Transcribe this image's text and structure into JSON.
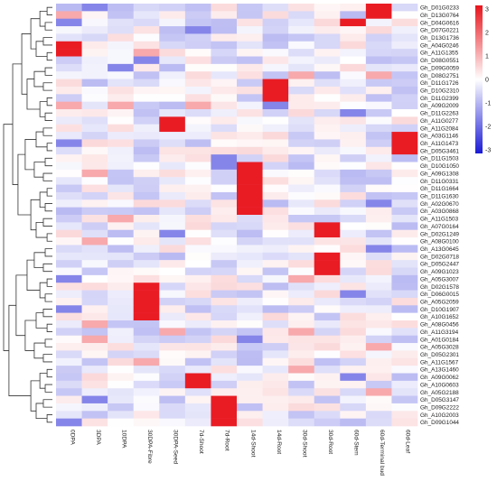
{
  "chart_data": {
    "type": "heatmap",
    "columns": [
      "0DPA",
      "3DPA",
      "10DPA",
      "30DPA-Fibre",
      "30DPA-Seed",
      "7d-Shoot",
      "7d-Root",
      "14d-Shoot",
      "14d-Root",
      "30d-Shoot",
      "30d-Root",
      "60d-Stem",
      "60d-Terminal bud",
      "60d-Leaf"
    ],
    "rows": [
      "Gh_D01G0233",
      "Gh_D13G0764",
      "Gh_D04G0616",
      "Gh_D07G0221",
      "Gh_D13G1736",
      "Gh_A04G0246",
      "Gh_A11G1355",
      "Gh_D08G0551",
      "Gh_D09G0059",
      "Gh_D08G2751",
      "Gh_D11G1726",
      "Gh_D10G2310",
      "Gh_D11G2399",
      "Gh_A09G2009",
      "Gh_D11G2263",
      "Gh_A11G0277",
      "Gh_A11G2084",
      "Gh_A03G1146",
      "Gh_A11G1473",
      "Gh_D05G3461",
      "Gh_D11G1503",
      "Gh_D10G1050",
      "Gh_A09G1308",
      "Gh_D11G0331",
      "Gh_D11G1664",
      "Gh_D11G1630",
      "Gh_A02G0670",
      "Gh_A03G0868",
      "Gh_A11G1503",
      "Gh_A07G0164",
      "Gh_D02G1249",
      "Gh_A08G0100",
      "Gh_A13G0645",
      "Gh_D02G0718",
      "Gh_D05G2447",
      "Gh_A09G1023",
      "Gh_A05G3007",
      "Gh_D02G1578",
      "Gh_D06G0015",
      "Gh_A05G2059",
      "Gh_D10G1907",
      "Gh_A10G1652",
      "Gh_A08G0456",
      "Gh_A11G3194",
      "Gh_A01G0184",
      "Gh_A05G3028",
      "Gh_D05G2301",
      "Gh_A11G1567",
      "Gh_A13G1460",
      "Gh_A09G0062",
      "Gh_A10G0603",
      "Gh_A05G2188",
      "Gh_D05G3147",
      "Gh_D09G2222",
      "Gh_A10G2003",
      "Gh_D09G1044"
    ],
    "hot": [
      [
        0,
        12
      ],
      [
        1,
        12
      ],
      [
        2,
        11
      ],
      [
        5,
        0
      ],
      [
        6,
        0
      ],
      [
        10,
        8
      ],
      [
        11,
        8
      ],
      [
        12,
        8
      ],
      [
        15,
        4
      ],
      [
        16,
        4
      ],
      [
        17,
        13
      ],
      [
        18,
        13
      ],
      [
        19,
        13
      ],
      [
        21,
        7
      ],
      [
        22,
        7
      ],
      [
        23,
        7
      ],
      [
        24,
        7
      ],
      [
        25,
        7
      ],
      [
        26,
        7
      ],
      [
        27,
        7
      ],
      [
        29,
        10
      ],
      [
        30,
        10
      ],
      [
        33,
        10
      ],
      [
        34,
        10
      ],
      [
        35,
        10
      ],
      [
        37,
        3
      ],
      [
        38,
        3
      ],
      [
        39,
        3
      ],
      [
        40,
        3
      ],
      [
        41,
        3
      ],
      [
        49,
        5
      ],
      [
        50,
        5
      ],
      [
        52,
        6
      ],
      [
        53,
        6
      ],
      [
        54,
        6
      ],
      [
        55,
        6
      ]
    ],
    "warm": [
      [
        1,
        0
      ],
      [
        6,
        3
      ],
      [
        9,
        9
      ],
      [
        9,
        12
      ],
      [
        13,
        0
      ],
      [
        13,
        2
      ],
      [
        13,
        5
      ],
      [
        22,
        1
      ],
      [
        28,
        2
      ],
      [
        31,
        1
      ],
      [
        36,
        9
      ],
      [
        42,
        1
      ],
      [
        43,
        4
      ],
      [
        43,
        9
      ],
      [
        44,
        1
      ],
      [
        45,
        12
      ],
      [
        47,
        3
      ],
      [
        48,
        9
      ],
      [
        51,
        12
      ]
    ],
    "cool": [
      [
        0,
        1
      ],
      [
        2,
        0
      ],
      [
        3,
        5
      ],
      [
        7,
        3
      ],
      [
        8,
        2
      ],
      [
        13,
        8
      ],
      [
        14,
        11
      ],
      [
        18,
        0
      ],
      [
        20,
        6
      ],
      [
        21,
        6
      ],
      [
        26,
        12
      ],
      [
        30,
        4
      ],
      [
        32,
        12
      ],
      [
        36,
        0
      ],
      [
        38,
        11
      ],
      [
        40,
        0
      ],
      [
        44,
        7
      ],
      [
        49,
        11
      ],
      [
        52,
        1
      ],
      [
        55,
        0
      ]
    ],
    "color_scale": {
      "min": -3,
      "max": 3,
      "ticks": [
        "3",
        "2",
        "1",
        "0",
        "-1",
        "-2",
        "-3"
      ],
      "low_color": "#1a1ad6",
      "mid_color": "#ffffff",
      "high_color": "#e8141c"
    },
    "dendrogram": "rows"
  }
}
